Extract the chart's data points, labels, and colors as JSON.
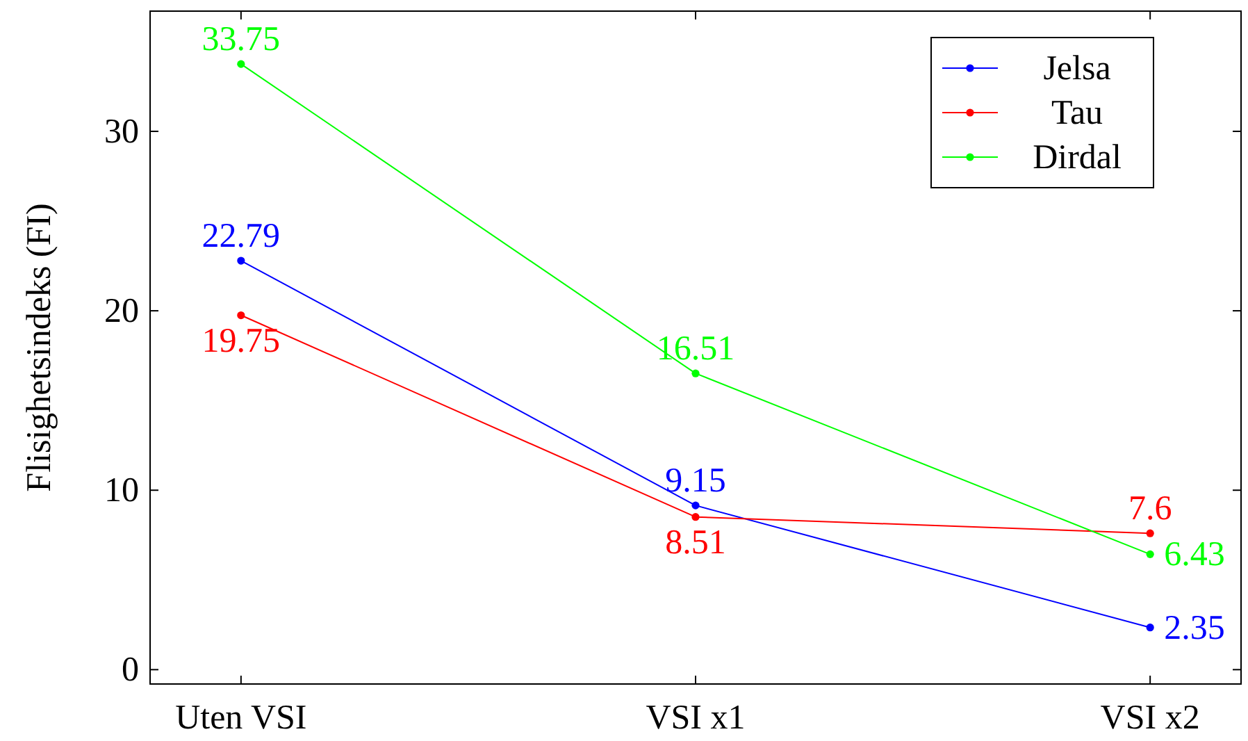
{
  "chart_data": {
    "type": "line",
    "ylabel": "Flisighetsindeks (FI)",
    "categories": [
      "Uten VSI",
      "VSI x1",
      "VSI x2"
    ],
    "series": [
      {
        "name": "Jelsa",
        "color": "#0000ff",
        "values": [
          22.79,
          9.15,
          2.35
        ]
      },
      {
        "name": "Tau",
        "color": "#ff0000",
        "values": [
          19.75,
          8.51,
          7.6
        ]
      },
      {
        "name": "Dirdal",
        "color": "#00ff00",
        "values": [
          33.75,
          16.51,
          6.43
        ]
      }
    ],
    "ylim": [
      -0.8,
      36.7
    ],
    "yticks": [
      0,
      10,
      20,
      30
    ],
    "grid": false,
    "legend": "top right",
    "marker": "circle",
    "line_style": "solid",
    "data_labels": true
  }
}
